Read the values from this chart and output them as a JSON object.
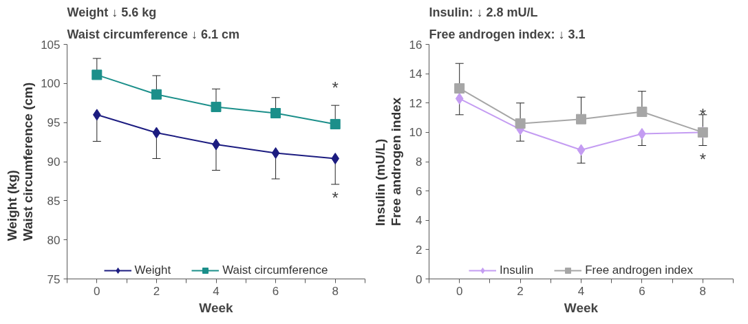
{
  "chart_data": [
    {
      "type": "line",
      "title": "Weight ↓ 5.6 kg",
      "subtitle": "Waist circumference ↓ 6.1 cm",
      "xlabel": "Week",
      "ylabel": "Weight (kg)\nWaist circumference (cm)",
      "categories": [
        "0",
        "2",
        "4",
        "6",
        "8"
      ],
      "ylim": [
        75,
        105
      ],
      "yticks": [
        75,
        80,
        85,
        90,
        95,
        100,
        105
      ],
      "grid": false,
      "legend": "bottom",
      "line_style": "solid",
      "series": [
        {
          "name": "Weight",
          "color": "#1c1c80",
          "marker": "diamond",
          "values": [
            96,
            93.7,
            92.2,
            91.1,
            90.4
          ],
          "errors": [
            [
              92.6,
              96
            ],
            [
              90.4,
              93.7
            ],
            [
              88.9,
              92.2
            ],
            [
              87.8,
              91.1
            ],
            [
              87.1,
              90.4
            ]
          ]
        },
        {
          "name": "Waist circumference",
          "color": "#1b8f8a",
          "marker": "square",
          "values": [
            101.1,
            98.6,
            97.0,
            96.2,
            94.8
          ],
          "errors": [
            [
              101.1,
              103.2
            ],
            [
              98.6,
              101.0
            ],
            [
              97.0,
              99.3
            ],
            [
              96.2,
              98.2
            ],
            [
              94.8,
              97.2
            ]
          ]
        }
      ],
      "annotations": [
        "*",
        "*"
      ]
    },
    {
      "type": "line",
      "title": "Insulin: ↓ 2.8 mU/L",
      "subtitle": "Free androgen index: ↓ 3.1",
      "xlabel": "Week",
      "ylabel": "Insulin (mU/L)\nFree androgen index",
      "categories": [
        "0",
        "2",
        "4",
        "6",
        "8"
      ],
      "ylim": [
        0,
        16
      ],
      "yticks": [
        0,
        2,
        4,
        6,
        8,
        10,
        12,
        14,
        16
      ],
      "grid": false,
      "legend": "bottom",
      "line_style": "solid",
      "series": [
        {
          "name": "Insulin",
          "color": "#c49cf2",
          "marker": "diamond",
          "values": [
            12.3,
            10.2,
            8.8,
            9.9,
            10.0
          ],
          "errors": [
            [
              11.2,
              12.3
            ],
            [
              9.4,
              10.2
            ],
            [
              7.9,
              8.8
            ],
            [
              9.1,
              9.9
            ],
            [
              9.1,
              10.0
            ]
          ]
        },
        {
          "name": "Free androgen index",
          "color": "#a6a6a6",
          "marker": "square",
          "values": [
            13.0,
            10.6,
            10.9,
            11.4,
            10.0
          ],
          "errors": [
            [
              13.0,
              14.7
            ],
            [
              10.6,
              12.0
            ],
            [
              10.9,
              12.4
            ],
            [
              11.4,
              12.8
            ],
            [
              10.0,
              11.2
            ]
          ]
        }
      ],
      "annotations": [
        "*",
        "*"
      ]
    }
  ]
}
